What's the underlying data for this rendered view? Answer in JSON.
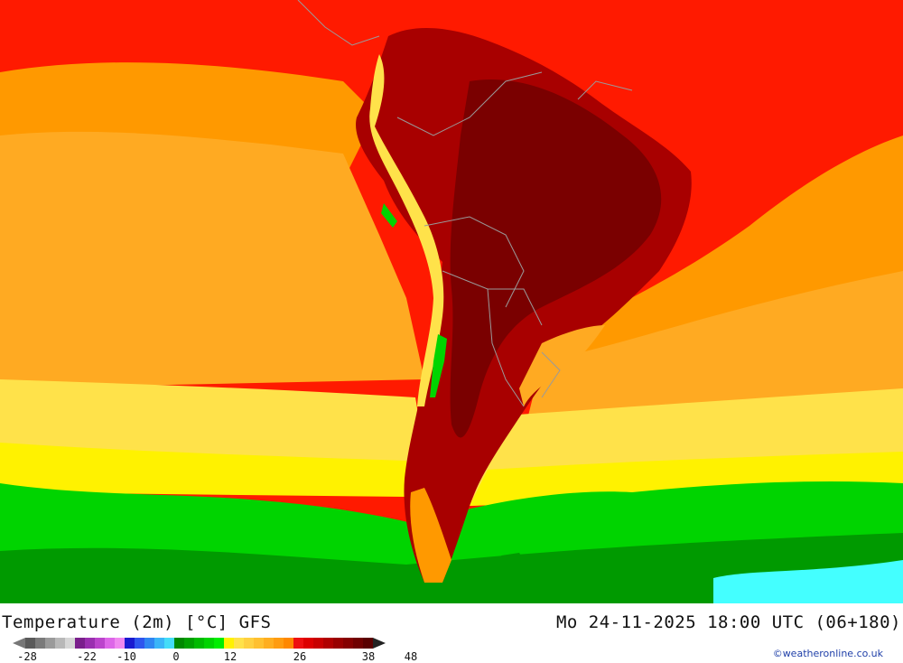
{
  "title": "Temperature (2m) [°C] GFS",
  "datetime": "Mo 24-11-2025 18:00 UTC (06+180)",
  "credit": "©weatheronline.co.uk",
  "legend": {
    "ticks": [
      "-28",
      "-22",
      "-10",
      "0",
      "12",
      "26",
      "38",
      "48"
    ],
    "colors": [
      "#5a5a5a",
      "#7a7a7a",
      "#9a9a9a",
      "#b8b8b8",
      "#d6d6d6",
      "#7a1f8c",
      "#9a2fb0",
      "#bb44cc",
      "#dd66e8",
      "#f088f0",
      "#1a1ad0",
      "#2e55ee",
      "#2f86f2",
      "#3ab5f8",
      "#44dcf8",
      "#008800",
      "#00a000",
      "#00bb00",
      "#00d400",
      "#00ee00",
      "#fff200",
      "#ffe24a",
      "#ffd040",
      "#ffc030",
      "#ffae20",
      "#ff9c10",
      "#ff8800",
      "#ee1010",
      "#dd0000",
      "#c80000",
      "#b00000",
      "#990000",
      "#850000",
      "#700000",
      "#5a0000"
    ]
  },
  "colors": {
    "tropics_hot": "#ff1a00",
    "subtropic_orange": "#ff9900",
    "mid_orange": "#ffaa22",
    "yellow_band": "#ffe24a",
    "bright_yellow": "#fff200",
    "green_band": "#00d400",
    "dark_green": "#009a00",
    "cold_cyan": "#44ffff",
    "land_hot": "#a80000",
    "land_very_hot": "#7a0000",
    "border": "#9a9a9a"
  }
}
